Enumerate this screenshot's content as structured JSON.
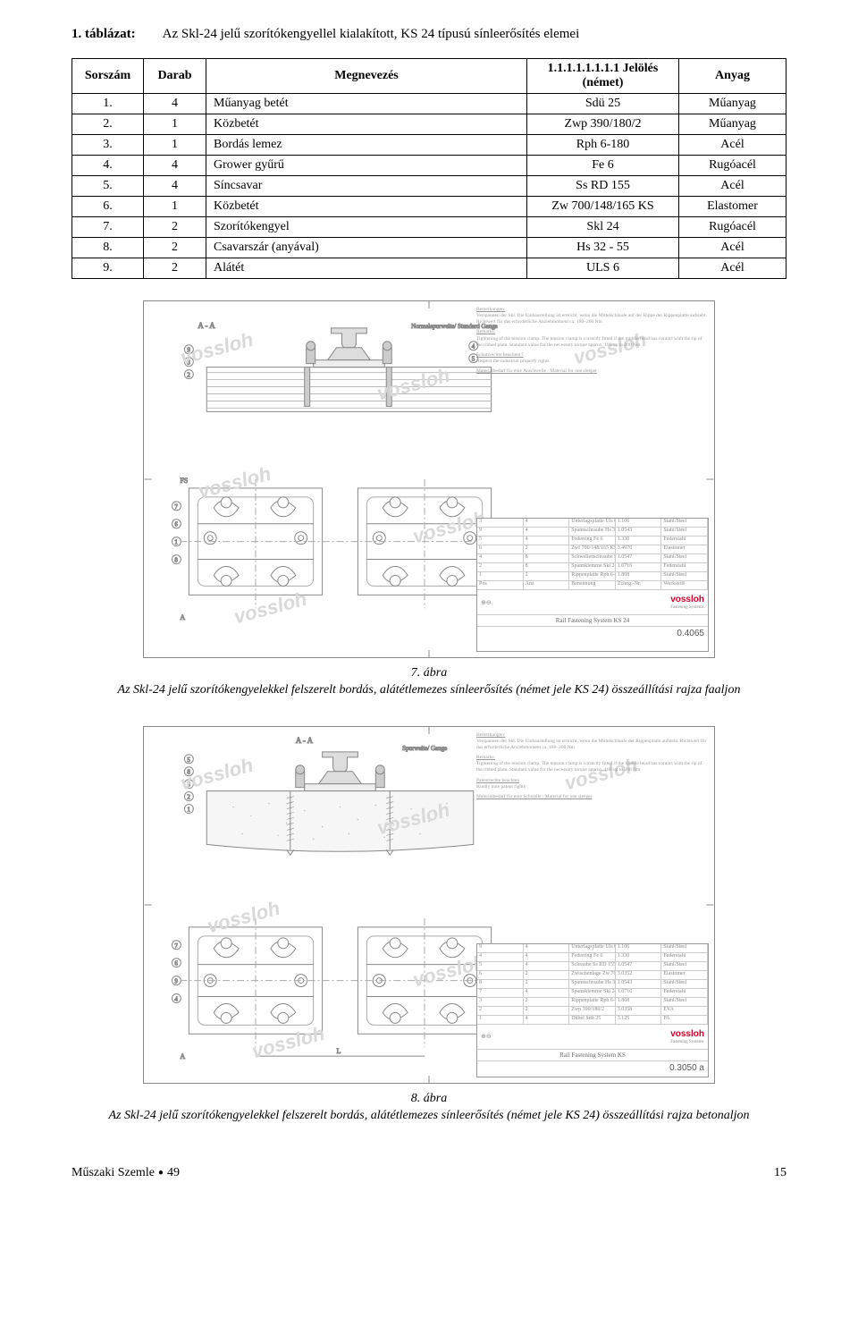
{
  "title": {
    "label": "1. táblázat:",
    "text": "Az Skl-24 jelű szorítókengyellel kialakított, KS 24 típusú sínleerősítés elemei"
  },
  "table": {
    "headers": {
      "sorszam": "Sorszám",
      "darab": "Darab",
      "megnevezes": "Megnevezés",
      "jeloles": "1.1.1.1.1.1.1.1 Jelölés (német)",
      "anyag": "Anyag"
    },
    "rows": [
      {
        "sorszam": "1.",
        "darab": "4",
        "megnevezes": "Műanyag betét",
        "jeloles": "Sdü 25",
        "anyag": "Műanyag"
      },
      {
        "sorszam": "2.",
        "darab": "1",
        "megnevezes": "Közbetét",
        "jeloles": "Zwp 390/180/2",
        "anyag": "Műanyag"
      },
      {
        "sorszam": "3.",
        "darab": "1",
        "megnevezes": "Bordás lemez",
        "jeloles": "Rph 6-180",
        "anyag": "Acél"
      },
      {
        "sorszam": "4.",
        "darab": "4",
        "megnevezes": "Grower gyűrű",
        "jeloles": "Fe 6",
        "anyag": "Rugóacél"
      },
      {
        "sorszam": "5.",
        "darab": "4",
        "megnevezes": "Síncsavar",
        "jeloles": "Ss RD 155",
        "anyag": "Acél"
      },
      {
        "sorszam": "6.",
        "darab": "1",
        "megnevezes": "Közbetét",
        "jeloles": "Zw 700/148/165 KS",
        "anyag": "Elastomer"
      },
      {
        "sorszam": "7.",
        "darab": "2",
        "megnevezes": "Szorítókengyel",
        "jeloles": "Skl 24",
        "anyag": "Rugóacél"
      },
      {
        "sorszam": "8.",
        "darab": "2",
        "megnevezes": "Csavarszár (anyával)",
        "jeloles": "Hs 32 - 55",
        "anyag": "Acél"
      },
      {
        "sorszam": "9.",
        "darab": "2",
        "megnevezes": "Alátét",
        "jeloles": "ULS 6",
        "anyag": "Acél"
      }
    ]
  },
  "figures": {
    "fig7": {
      "label": "7. ábra",
      "caption": "Az Skl-24 jelű szorítókengyelekkel felszerelt bordás, alátétlemezes sínleerősítés (német jele KS 24) összeállítási rajza faaljon",
      "drawing_number": "0.4065",
      "drawing_title": "Rail Fastening System KS 24",
      "section_label": "A - A",
      "gauge_label": "Normalspurweite/ Standard Gauge",
      "notes_de_title": "Bemerkungen:",
      "notes_en_title": "Remarks:",
      "notes_rights_de": "Schutzrechte beachten !",
      "notes_rights_en": "Respect the industrial property rights",
      "notes_material": "Materialbedarf für eine Anschwelle / Material for one sleeper"
    },
    "fig8": {
      "label": "8. ábra",
      "caption": "Az Skl-24 jelű szorítókengyelekkel felszerelt bordás, alátétlemezes sínleerősítés (német jele KS 24) összeállítási rajza betonaljon",
      "drawing_number": "0.3050 a",
      "drawing_title": "Rail Fastening System KS",
      "section_label": "A - A",
      "gauge_label": "Spurweite/ Gauge",
      "notes_de_title": "Bemerkungen:",
      "notes_en_title": "Remarks:",
      "notes_rights_de": "Patentrechte beachten",
      "notes_rights_en": "Kindly note patent rights",
      "notes_material": "Materialbedarf für eine Schwelle / Material for one sleeper"
    },
    "logo_text": "vossloh",
    "logo_sub": "Fastening Systems",
    "watermark": "vossloh"
  },
  "footer": {
    "journal": "Műszaki Szemle",
    "bullet": "●",
    "issue": "49",
    "page": "15"
  },
  "colors": {
    "text": "#000000",
    "background": "#ffffff",
    "drawing_stroke": "#888888",
    "drawing_light": "#bbbbbb",
    "watermark": "#d9d9d9",
    "logo_red": "#d4002a",
    "titleblock_border": "#bbbbbb"
  }
}
